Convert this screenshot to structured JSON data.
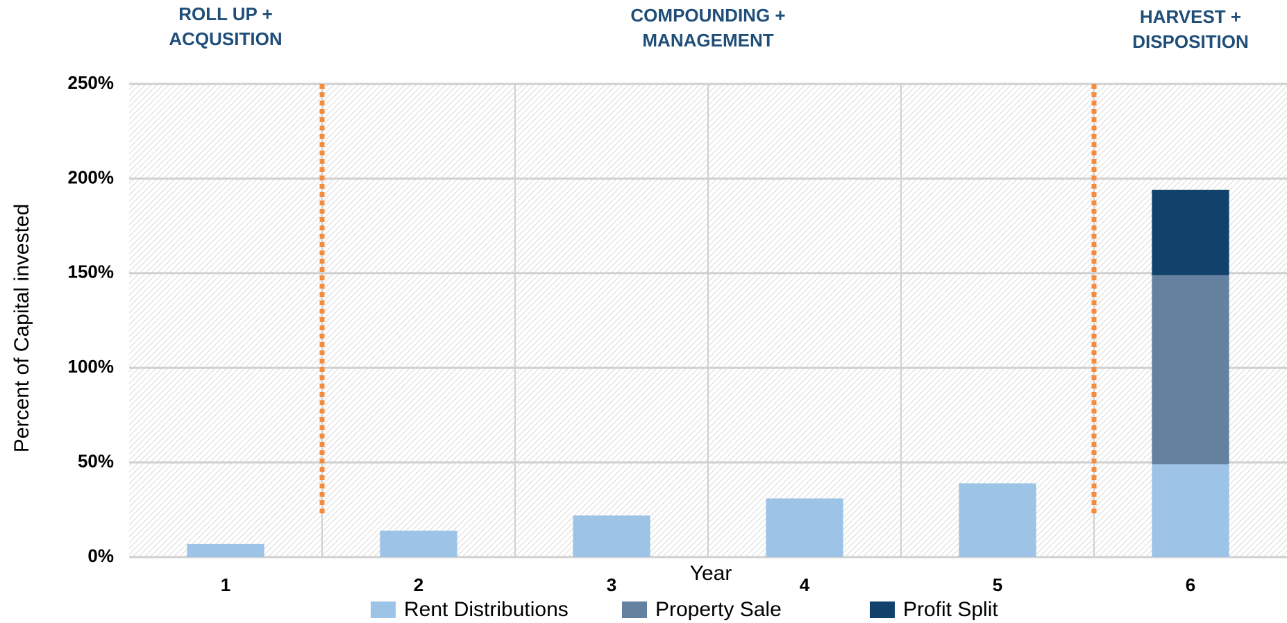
{
  "chart_data": {
    "type": "stacked_bar",
    "categories": [
      "1",
      "2",
      "3",
      "4",
      "5",
      "6"
    ],
    "series": [
      {
        "name": "Rent Distributions",
        "color": "#9dc3e6",
        "values": [
          7,
          14,
          22,
          31,
          39,
          49
        ]
      },
      {
        "name": "Property Sale",
        "color": "#64829f",
        "values": [
          0,
          0,
          0,
          0,
          0,
          100
        ]
      },
      {
        "name": "Profit Split",
        "color": "#12416b",
        "values": [
          0,
          0,
          0,
          0,
          0,
          45
        ]
      }
    ],
    "ylim": [
      0,
      250
    ],
    "yticks": [
      {
        "value": 0,
        "label": "0%"
      },
      {
        "value": 50,
        "label": "50%"
      },
      {
        "value": 100,
        "label": "100%"
      },
      {
        "value": 150,
        "label": "150%"
      },
      {
        "value": 200,
        "label": "200%"
      },
      {
        "value": 250,
        "label": "250%"
      }
    ],
    "xlabel": "Year",
    "ylabel": "Percent of Capital invested",
    "grid": true,
    "legend": "bottom",
    "annotations": [
      [
        "ROLL UP +",
        "ACQUSITION"
      ],
      [
        "COMPOUNDING +",
        "MANAGEMENT"
      ],
      [
        "HARVEST +",
        "DISPOSITION"
      ]
    ]
  }
}
